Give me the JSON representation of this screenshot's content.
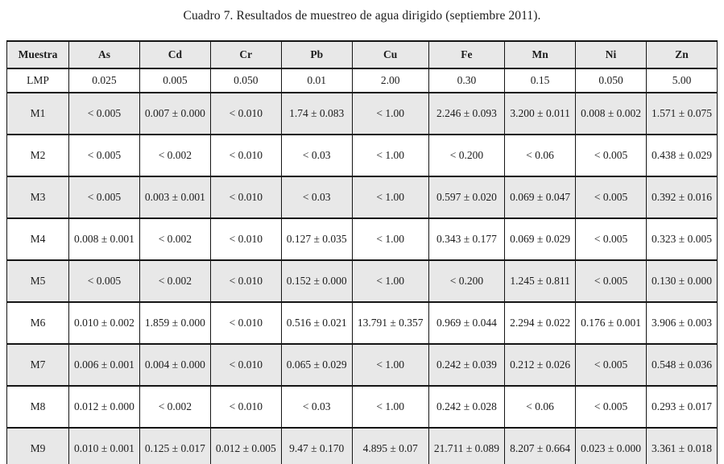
{
  "title": "Cuadro 7. Resultados de muestreo de agua dirigido (septiembre 2011).",
  "colors": {
    "shaded_row_bg": "#e8e8e8",
    "border": "#151515",
    "text": "#1c1c1c",
    "page_bg": "#ffffff"
  },
  "table": {
    "columns": [
      "Muestra",
      "As",
      "Cd",
      "Cr",
      "Pb",
      "Cu",
      "Fe",
      "Mn",
      "Ni",
      "Zn"
    ],
    "rows": [
      {
        "label": "LMP",
        "shaded": false,
        "type": "lmp",
        "values": [
          "0.025",
          "0.005",
          "0.050",
          "0.01",
          "2.00",
          "0.30",
          "0.15",
          "0.050",
          "5.00"
        ]
      },
      {
        "label": "M1",
        "shaded": true,
        "type": "data",
        "values": [
          "< 0.005",
          "0.007 ± 0.000",
          "< 0.010",
          "1.74 ± 0.083",
          "< 1.00",
          "2.246 ± 0.093",
          "3.200 ± 0.011",
          "0.008 ± 0.002",
          "1.571 ± 0.075"
        ]
      },
      {
        "label": "M2",
        "shaded": false,
        "type": "data",
        "values": [
          "< 0.005",
          "< 0.002",
          "< 0.010",
          "< 0.03",
          "< 1.00",
          "< 0.200",
          "< 0.06",
          "< 0.005",
          "0.438 ± 0.029"
        ]
      },
      {
        "label": "M3",
        "shaded": true,
        "type": "data",
        "values": [
          "< 0.005",
          "0.003 ± 0.001",
          "< 0.010",
          "< 0.03",
          "< 1.00",
          "0.597 ± 0.020",
          "0.069 ± 0.047",
          "< 0.005",
          "0.392 ± 0.016"
        ]
      },
      {
        "label": "M4",
        "shaded": false,
        "type": "data",
        "values": [
          "0.008 ± 0.001",
          "< 0.002",
          "< 0.010",
          "0.127 ± 0.035",
          "< 1.00",
          "0.343 ± 0.177",
          "0.069 ± 0.029",
          "< 0.005",
          "0.323 ± 0.005"
        ]
      },
      {
        "label": "M5",
        "shaded": true,
        "type": "data",
        "values": [
          "< 0.005",
          "< 0.002",
          "< 0.010",
          "0.152 ± 0.000",
          "< 1.00",
          "< 0.200",
          "1.245 ± 0.811",
          "< 0.005",
          "0.130 ± 0.000"
        ]
      },
      {
        "label": "M6",
        "shaded": false,
        "type": "data",
        "values": [
          "0.010 ± 0.002",
          "1.859 ± 0.000",
          "< 0.010",
          "0.516 ± 0.021",
          "13.791 ± 0.357",
          "0.969 ± 0.044",
          "2.294 ± 0.022",
          "0.176 ± 0.001",
          "3.906 ± 0.003"
        ]
      },
      {
        "label": "M7",
        "shaded": true,
        "type": "data",
        "values": [
          "0.006 ± 0.001",
          "0.004 ± 0.000",
          "< 0.010",
          "0.065 ± 0.029",
          "< 1.00",
          "0.242 ± 0.039",
          "0.212 ± 0.026",
          "< 0.005",
          "0.548 ± 0.036"
        ]
      },
      {
        "label": "M8",
        "shaded": false,
        "type": "data",
        "values": [
          "0.012 ± 0.000",
          "< 0.002",
          "< 0.010",
          "< 0.03",
          "< 1.00",
          "0.242 ± 0.028",
          "< 0.06",
          "< 0.005",
          "0.293 ± 0.017"
        ]
      },
      {
        "label": "M9",
        "shaded": true,
        "type": "data",
        "values": [
          "0.010 ± 0.001",
          "0.125 ± 0.017",
          "0.012 ± 0.005",
          "9.47 ± 0.170",
          "4.895 ± 0.07",
          "21.711 ± 0.089",
          "8.207 ± 0.664",
          "0.023 ± 0.000",
          "3.361 ± 0.018"
        ]
      }
    ]
  }
}
